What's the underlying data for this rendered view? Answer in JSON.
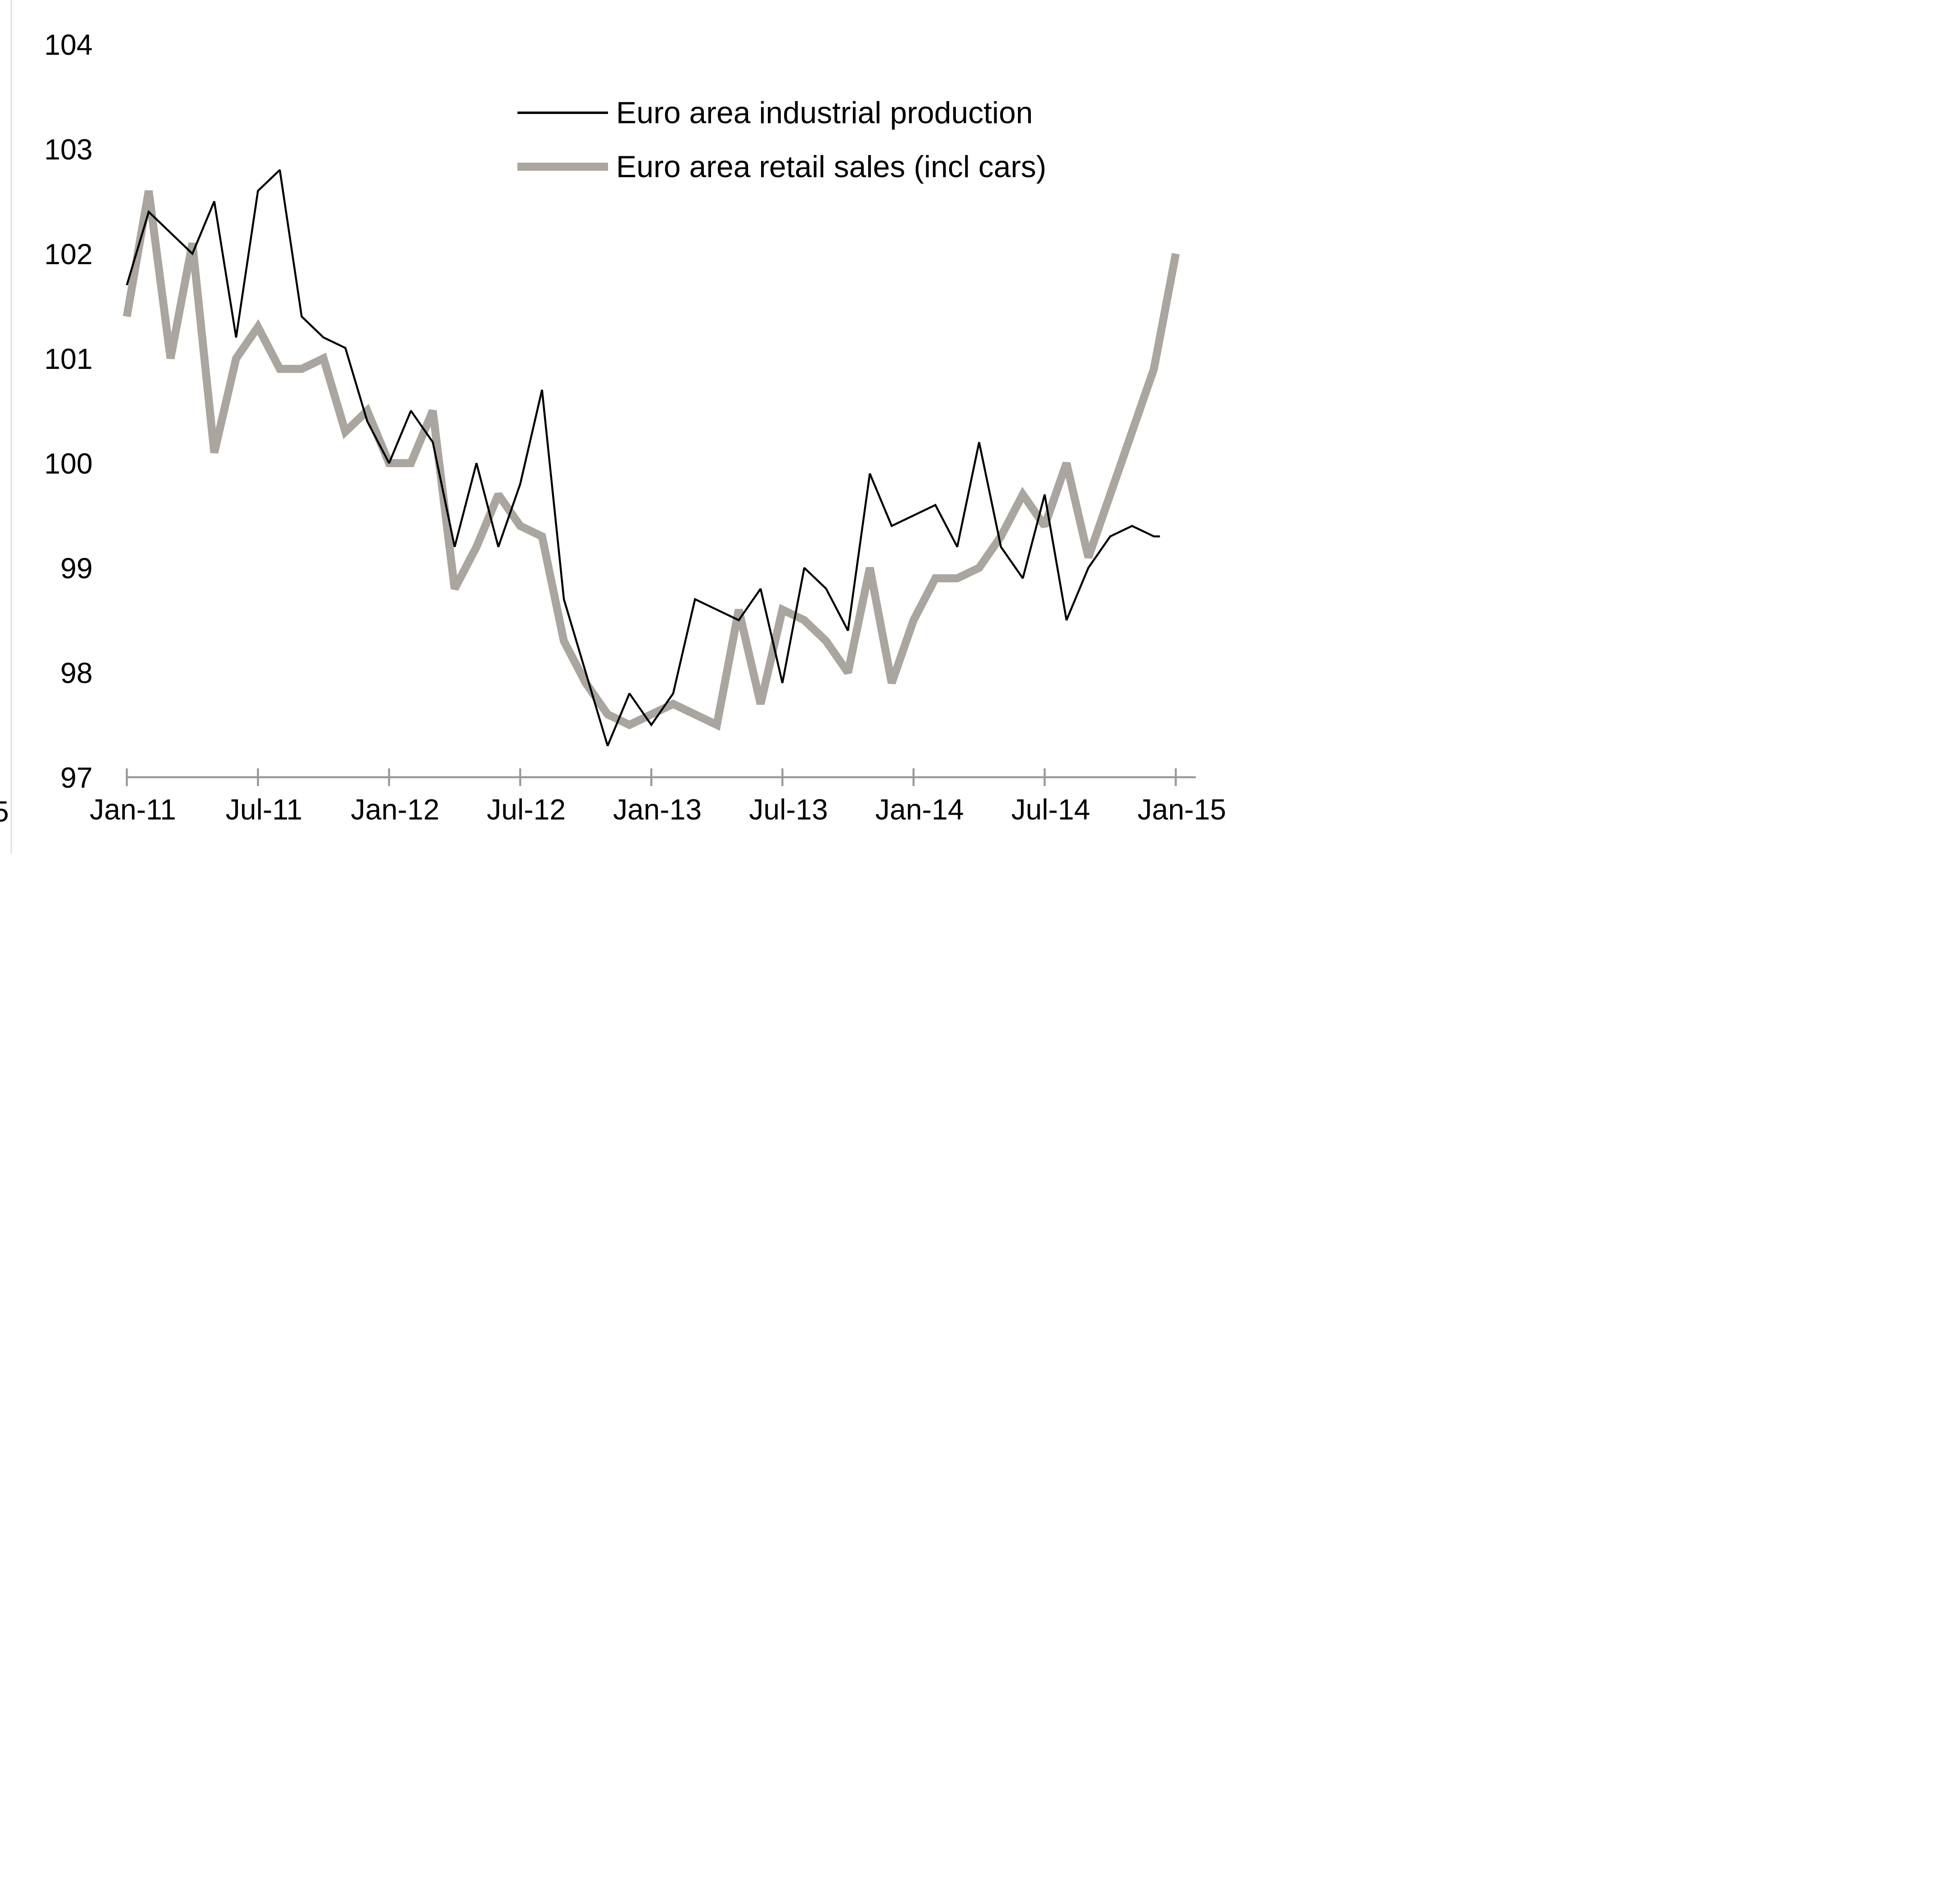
{
  "chart_data": {
    "type": "line",
    "title": "",
    "xlabel": "",
    "ylabel": "",
    "ylim": [
      97,
      104
    ],
    "yticks": [
      "97",
      "98",
      "99",
      "100",
      "101",
      "102",
      "103",
      "104"
    ],
    "xlim": [
      "2011-01",
      "2015-01"
    ],
    "xticks": [
      {
        "date": "2011-01",
        "label": "Jan-11"
      },
      {
        "date": "2011-07",
        "label": "Jul-11"
      },
      {
        "date": "2012-01",
        "label": "Jan-12"
      },
      {
        "date": "2012-07",
        "label": "Jul-12"
      },
      {
        "date": "2013-01",
        "label": "Jan-13"
      },
      {
        "date": "2013-07",
        "label": "Jul-13"
      },
      {
        "date": "2014-01",
        "label": "Jan-14"
      },
      {
        "date": "2014-07",
        "label": "Jul-14"
      },
      {
        "date": "2015-01",
        "label": "Jan-15"
      }
    ],
    "grid": false,
    "legend_position": "top-center",
    "series": [
      {
        "name": "Euro area industrial production",
        "color": "#000000",
        "x": [
          "2011-01",
          "2011-02",
          "2011-03",
          "2011-04",
          "2011-05",
          "2011-06",
          "2011-07",
          "2011-08",
          "2011-09",
          "2011-10",
          "2011-11",
          "2011-12",
          "2012-01",
          "2012-02",
          "2012-03",
          "2012-04",
          "2012-05",
          "2012-06",
          "2012-07",
          "2012-08",
          "2012-09",
          "2012-10",
          "2012-11",
          "2012-12",
          "2013-01",
          "2013-02",
          "2013-03",
          "2013-04",
          "2013-05",
          "2013-06",
          "2013-07",
          "2013-08",
          "2013-09",
          "2013-10",
          "2013-11",
          "2013-12",
          "2014-01",
          "2014-02",
          "2014-03",
          "2014-04",
          "2014-05",
          "2014-06",
          "2014-07",
          "2014-08",
          "2014-09",
          "2014-10",
          "2014-11",
          "2014-12"
        ],
        "values": [
          101.7,
          102.4,
          102.2,
          102.0,
          102.5,
          101.2,
          102.6,
          102.8,
          101.4,
          101.2,
          101.1,
          100.4,
          100.0,
          100.5,
          100.2,
          99.2,
          100.0,
          99.2,
          99.8,
          100.7,
          98.7,
          98.0,
          97.3,
          97.8,
          97.5,
          97.8,
          98.7,
          98.6,
          98.5,
          98.8,
          97.9,
          99.0,
          98.8,
          98.4,
          99.9,
          99.4,
          99.5,
          99.6,
          99.2,
          100.2,
          99.2,
          98.9,
          99.7,
          98.5,
          99.0,
          99.3,
          99.4,
          99.3
        ],
        "values_end": 99.3
      },
      {
        "name": "Euro area retail sales (incl cars)",
        "color": "#aba59f",
        "x": [
          "2011-01",
          "2011-02",
          "2011-03",
          "2011-04",
          "2011-05",
          "2011-06",
          "2011-07",
          "2011-08",
          "2011-09",
          "2011-10",
          "2011-11",
          "2011-12",
          "2012-01",
          "2012-02",
          "2012-03",
          "2012-04",
          "2012-05",
          "2012-06",
          "2012-07",
          "2012-08",
          "2012-09",
          "2012-10",
          "2012-11",
          "2012-12",
          "2013-01",
          "2013-02",
          "2013-03",
          "2013-04",
          "2013-05",
          "2013-06",
          "2013-07",
          "2013-08",
          "2013-09",
          "2013-10",
          "2013-11",
          "2013-12",
          "2014-01",
          "2014-02",
          "2014-03",
          "2014-04",
          "2014-05",
          "2014-06",
          "2014-07",
          "2014-08",
          "2014-09",
          "2014-10",
          "2014-11",
          "2014-12",
          "2015-01"
        ],
        "values": [
          101.4,
          102.6,
          101.0,
          102.1,
          100.1,
          101.0,
          101.3,
          100.9,
          100.9,
          101.0,
          100.3,
          100.5,
          100.0,
          100.0,
          100.5,
          98.8,
          99.2,
          99.7,
          99.4,
          99.3,
          98.3,
          97.9,
          97.6,
          97.5,
          97.6,
          97.7,
          97.6,
          97.5,
          98.6,
          97.7,
          98.6,
          98.5,
          98.3,
          98.0,
          99.0,
          97.9,
          98.5,
          98.9,
          98.9,
          99.0,
          99.3,
          99.7,
          99.4,
          100.0,
          99.1,
          99.7,
          100.3,
          100.9,
          102.0
        ]
      }
    ]
  },
  "page": {
    "left_clip_label": "5"
  }
}
